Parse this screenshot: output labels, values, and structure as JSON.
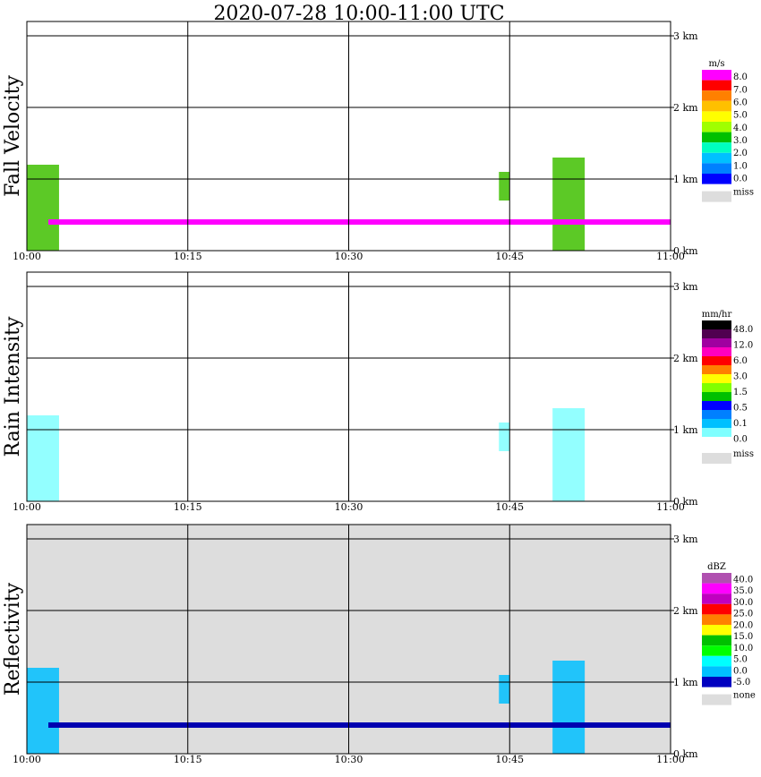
{
  "title": "2020-07-28   10:00-11:00 UTC",
  "time_labels": [
    "10:00",
    "10:15",
    "10:30",
    "10:45",
    "11:00"
  ],
  "height_labels": [
    "0 km",
    "1 km",
    "2 km",
    "3 km"
  ],
  "panels": [
    {
      "id": "fall-velocity",
      "ylabel": "Fall Velocity",
      "background": "#ffffff",
      "colorbar": {
        "unit": "m/s",
        "bins": [
          "#ff00ff",
          "#ff0000",
          "#ff8000",
          "#ffc000",
          "#ffff00",
          "#a0ff00",
          "#00c000",
          "#00ffc0",
          "#00c0ff",
          "#0080ff",
          "#0000ff"
        ],
        "labels": [
          "8.0",
          "7.0",
          "6.0",
          "5.0",
          "4.0",
          "3.0",
          "2.0",
          "1.0",
          "0.0"
        ],
        "miss_label": "miss",
        "miss_color": "#dddddd"
      },
      "band": {
        "height_km": 0.4,
        "color": "#ff00ff"
      }
    },
    {
      "id": "rain-intensity",
      "ylabel": "Rain Intensity",
      "background": "#ffffff",
      "colorbar": {
        "unit": "mm/hr",
        "bins": [
          "#000000",
          "#500050",
          "#a000a0",
          "#ff00c0",
          "#ff0000",
          "#ff8000",
          "#ffff00",
          "#80ff00",
          "#00c000",
          "#0000ff",
          "#0080ff",
          "#00c0ff",
          "#80ffff",
          "#ffffff"
        ],
        "labels": [
          "48.0",
          "12.0",
          "6.0",
          "3.0",
          "1.5",
          "0.5",
          "0.1",
          "0.0"
        ],
        "miss_label": "miss",
        "miss_color": "#dddddd"
      },
      "band": null
    },
    {
      "id": "reflectivity",
      "ylabel": "Reflectivity",
      "background": "#dddddd",
      "colorbar": {
        "unit": "dBZ",
        "bins": [
          "#b050b0",
          "#ff00ff",
          "#c000c0",
          "#ff0000",
          "#ff8000",
          "#ffff00",
          "#00c000",
          "#00ff00",
          "#00ffff",
          "#00c0ff",
          "#0000c0"
        ],
        "labels": [
          "40.0",
          "35.0",
          "30.0",
          "25.0",
          "20.0",
          "15.0",
          "10.0",
          "5.0",
          "0.0",
          "-5.0"
        ],
        "miss_label": "none",
        "miss_color": "#dddddd"
      },
      "band": {
        "height_km": 0.4,
        "color": "#0000b0"
      }
    }
  ],
  "chart_data": {
    "type": "heatmap",
    "x_range": [
      "10:00",
      "11:00"
    ],
    "y_range_km": [
      0,
      3.2
    ],
    "grid": true,
    "echoes": [
      {
        "t_start": "10:00",
        "t_end": "10:03",
        "h_low_km": 0.0,
        "h_high_km": 1.2
      },
      {
        "t_start": "10:44",
        "t_end": "10:45",
        "h_low_km": 0.7,
        "h_high_km": 1.1
      },
      {
        "t_start": "10:49",
        "t_end": "10:52",
        "h_low_km": 0.0,
        "h_high_km": 1.3
      }
    ]
  }
}
